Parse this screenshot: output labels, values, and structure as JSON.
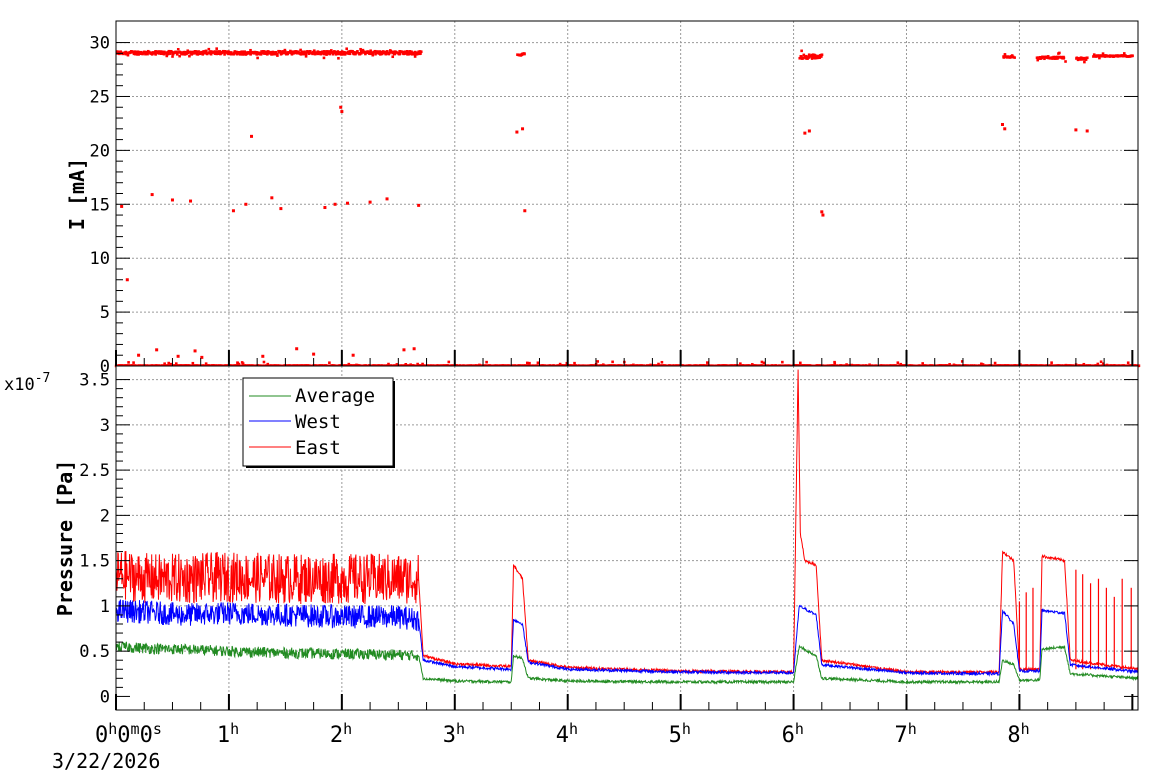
{
  "chart_data": [
    {
      "type": "scatter",
      "ylabel": "I [mA]",
      "ylim": [
        0,
        32
      ],
      "yticks": [
        0,
        5,
        10,
        15,
        20,
        25,
        30
      ],
      "xlim_hours": [
        0,
        9.05
      ],
      "grid": true,
      "series": [
        {
          "color": "#ff0000",
          "bands": [
            {
              "x": [
                0.0,
                2.7
              ],
              "y": [
                28.9,
                29.2
              ]
            },
            {
              "x": [
                3.55,
                3.62
              ],
              "y": [
                28.8,
                29.0
              ]
            },
            {
              "x": [
                6.05,
                6.25
              ],
              "y": [
                28.5,
                28.9
              ]
            },
            {
              "x": [
                7.85,
                7.95
              ],
              "y": [
                28.6,
                28.8
              ]
            },
            {
              "x": [
                8.15,
                8.4
              ],
              "y": [
                28.5,
                28.7
              ]
            },
            {
              "x": [
                8.5,
                8.6
              ],
              "y": [
                28.4,
                28.6
              ]
            },
            {
              "x": [
                8.65,
                9.0
              ],
              "y": [
                28.7,
                28.8
              ]
            },
            {
              "x": [
                0.0,
                9.05
              ],
              "y": [
                0.0,
                0.05
              ]
            }
          ],
          "points": [
            {
              "x": 0.05,
              "y": 14.8
            },
            {
              "x": 0.1,
              "y": 8.0
            },
            {
              "x": 0.2,
              "y": 1.0
            },
            {
              "x": 0.32,
              "y": 15.9
            },
            {
              "x": 0.36,
              "y": 1.5
            },
            {
              "x": 0.5,
              "y": 15.4
            },
            {
              "x": 0.55,
              "y": 0.9
            },
            {
              "x": 0.66,
              "y": 15.3
            },
            {
              "x": 0.7,
              "y": 1.4
            },
            {
              "x": 0.76,
              "y": 0.8
            },
            {
              "x": 1.04,
              "y": 14.4
            },
            {
              "x": 1.15,
              "y": 15.0
            },
            {
              "x": 1.2,
              "y": 21.3
            },
            {
              "x": 1.3,
              "y": 0.9
            },
            {
              "x": 1.38,
              "y": 15.6
            },
            {
              "x": 1.46,
              "y": 14.6
            },
            {
              "x": 1.6,
              "y": 1.6
            },
            {
              "x": 1.75,
              "y": 1.1
            },
            {
              "x": 1.85,
              "y": 14.7
            },
            {
              "x": 1.94,
              "y": 15.0
            },
            {
              "x": 1.99,
              "y": 24.0
            },
            {
              "x": 2.0,
              "y": 23.6
            },
            {
              "x": 2.05,
              "y": 15.1
            },
            {
              "x": 2.1,
              "y": 1.0
            },
            {
              "x": 2.25,
              "y": 15.2
            },
            {
              "x": 2.4,
              "y": 15.5
            },
            {
              "x": 2.55,
              "y": 1.5
            },
            {
              "x": 2.64,
              "y": 1.6
            },
            {
              "x": 2.68,
              "y": 14.9
            },
            {
              "x": 3.55,
              "y": 21.7
            },
            {
              "x": 3.6,
              "y": 22.0
            },
            {
              "x": 3.62,
              "y": 14.4
            },
            {
              "x": 6.1,
              "y": 21.6
            },
            {
              "x": 6.14,
              "y": 21.8
            },
            {
              "x": 6.25,
              "y": 14.3
            },
            {
              "x": 6.26,
              "y": 14.0
            },
            {
              "x": 7.85,
              "y": 22.4
            },
            {
              "x": 7.87,
              "y": 22.0
            },
            {
              "x": 8.5,
              "y": 21.9
            },
            {
              "x": 8.6,
              "y": 21.8
            }
          ]
        }
      ]
    },
    {
      "type": "line",
      "ylabel": "Pressure [Pa]",
      "y_exponent_label": "x10",
      "y_exponent_power": "-7",
      "ylim": [
        -0.15,
        3.65
      ],
      "yticks": [
        0,
        0.5,
        1,
        1.5,
        2,
        2.5,
        3,
        3.5
      ],
      "xlim_hours": [
        0,
        9.05
      ],
      "grid": true,
      "legend": {
        "placement": "top-left"
      },
      "series": [
        {
          "name": "Average",
          "color": "#228b22",
          "points": [
            [
              0.0,
              0.55
            ],
            [
              0.3,
              0.53
            ],
            [
              0.6,
              0.52
            ],
            [
              1.0,
              0.5
            ],
            [
              1.5,
              0.48
            ],
            [
              2.0,
              0.47
            ],
            [
              2.5,
              0.46
            ],
            [
              2.68,
              0.45
            ],
            [
              2.72,
              0.2
            ],
            [
              3.0,
              0.17
            ],
            [
              3.5,
              0.16
            ],
            [
              3.52,
              0.45
            ],
            [
              3.6,
              0.42
            ],
            [
              3.65,
              0.2
            ],
            [
              4.0,
              0.17
            ],
            [
              5.0,
              0.16
            ],
            [
              6.0,
              0.16
            ],
            [
              6.05,
              0.55
            ],
            [
              6.2,
              0.45
            ],
            [
              6.25,
              0.2
            ],
            [
              7.0,
              0.16
            ],
            [
              7.82,
              0.16
            ],
            [
              7.85,
              0.4
            ],
            [
              7.95,
              0.35
            ],
            [
              8.0,
              0.18
            ],
            [
              8.18,
              0.18
            ],
            [
              8.2,
              0.52
            ],
            [
              8.4,
              0.55
            ],
            [
              8.45,
              0.25
            ],
            [
              9.05,
              0.2
            ]
          ],
          "noise": [
            [
              0.0,
              2.68,
              0.06
            ]
          ]
        },
        {
          "name": "West",
          "color": "#0000ff",
          "points": [
            [
              0.0,
              0.95
            ],
            [
              0.3,
              0.93
            ],
            [
              0.6,
              0.9
            ],
            [
              1.0,
              0.92
            ],
            [
              1.5,
              0.9
            ],
            [
              2.0,
              0.88
            ],
            [
              2.5,
              0.88
            ],
            [
              2.68,
              0.85
            ],
            [
              2.72,
              0.4
            ],
            [
              3.0,
              0.33
            ],
            [
              3.5,
              0.3
            ],
            [
              3.52,
              0.85
            ],
            [
              3.6,
              0.8
            ],
            [
              3.65,
              0.38
            ],
            [
              4.0,
              0.3
            ],
            [
              5.0,
              0.27
            ],
            [
              6.0,
              0.26
            ],
            [
              6.05,
              1.0
            ],
            [
              6.2,
              0.9
            ],
            [
              6.25,
              0.35
            ],
            [
              7.0,
              0.26
            ],
            [
              7.82,
              0.25
            ],
            [
              7.85,
              0.95
            ],
            [
              7.95,
              0.8
            ],
            [
              8.0,
              0.28
            ],
            [
              8.18,
              0.28
            ],
            [
              8.2,
              0.95
            ],
            [
              8.4,
              0.92
            ],
            [
              8.45,
              0.35
            ],
            [
              9.05,
              0.27
            ]
          ],
          "noise": [
            [
              0.0,
              2.68,
              0.13
            ]
          ]
        },
        {
          "name": "East",
          "color": "#ff0000",
          "points": [
            [
              0.0,
              1.35
            ],
            [
              0.3,
              1.3
            ],
            [
              0.6,
              1.3
            ],
            [
              1.0,
              1.32
            ],
            [
              1.5,
              1.3
            ],
            [
              2.0,
              1.3
            ],
            [
              2.5,
              1.3
            ],
            [
              2.68,
              1.3
            ],
            [
              2.72,
              0.45
            ],
            [
              3.0,
              0.36
            ],
            [
              3.5,
              0.33
            ],
            [
              3.52,
              1.45
            ],
            [
              3.6,
              1.3
            ],
            [
              3.65,
              0.4
            ],
            [
              4.0,
              0.32
            ],
            [
              5.0,
              0.28
            ],
            [
              6.0,
              0.27
            ],
            [
              6.04,
              3.6
            ],
            [
              6.06,
              1.8
            ],
            [
              6.1,
              1.5
            ],
            [
              6.2,
              1.45
            ],
            [
              6.25,
              0.4
            ],
            [
              7.0,
              0.27
            ],
            [
              7.82,
              0.27
            ],
            [
              7.85,
              1.6
            ],
            [
              7.95,
              1.5
            ],
            [
              8.0,
              0.3
            ],
            [
              8.18,
              0.3
            ],
            [
              8.2,
              1.55
            ],
            [
              8.4,
              1.5
            ],
            [
              8.45,
              0.4
            ],
            [
              9.05,
              0.3
            ]
          ],
          "noise": [
            [
              0.0,
              2.68,
              0.28
            ]
          ],
          "spikes": [
            [
              8.0,
              1.05
            ],
            [
              8.06,
              1.15
            ],
            [
              8.12,
              1.2
            ],
            [
              8.5,
              1.4
            ],
            [
              8.56,
              1.35
            ],
            [
              8.63,
              1.25
            ],
            [
              8.7,
              1.3
            ],
            [
              8.77,
              1.2
            ],
            [
              8.84,
              1.1
            ],
            [
              8.91,
              1.3
            ],
            [
              8.99,
              1.2
            ]
          ]
        }
      ]
    }
  ],
  "x_axis": {
    "tick_labels": [
      {
        "hour": 0,
        "base": "0",
        "label_parts": [
          {
            "t": "0",
            "s": false
          },
          {
            "t": "h",
            "s": true
          },
          {
            "t": "0",
            "s": false
          },
          {
            "t": "m",
            "s": true
          },
          {
            "t": "0",
            "s": false
          },
          {
            "t": "s",
            "s": true
          }
        ]
      },
      {
        "hour": 1,
        "label_parts": [
          {
            "t": "1",
            "s": false
          },
          {
            "t": "h",
            "s": true
          }
        ]
      },
      {
        "hour": 2,
        "label_parts": [
          {
            "t": "2",
            "s": false
          },
          {
            "t": "h",
            "s": true
          }
        ]
      },
      {
        "hour": 3,
        "label_parts": [
          {
            "t": "3",
            "s": false
          },
          {
            "t": "h",
            "s": true
          }
        ]
      },
      {
        "hour": 4,
        "label_parts": [
          {
            "t": "4",
            "s": false
          },
          {
            "t": "h",
            "s": true
          }
        ]
      },
      {
        "hour": 5,
        "label_parts": [
          {
            "t": "5",
            "s": false
          },
          {
            "t": "h",
            "s": true
          }
        ]
      },
      {
        "hour": 6,
        "label_parts": [
          {
            "t": "6",
            "s": false
          },
          {
            "t": "h",
            "s": true
          }
        ]
      },
      {
        "hour": 7,
        "label_parts": [
          {
            "t": "7",
            "s": false
          },
          {
            "t": "h",
            "s": true
          }
        ]
      },
      {
        "hour": 8,
        "label_parts": [
          {
            "t": "8",
            "s": false
          },
          {
            "t": "h",
            "s": true
          }
        ]
      }
    ],
    "date": "3/22/2026"
  }
}
